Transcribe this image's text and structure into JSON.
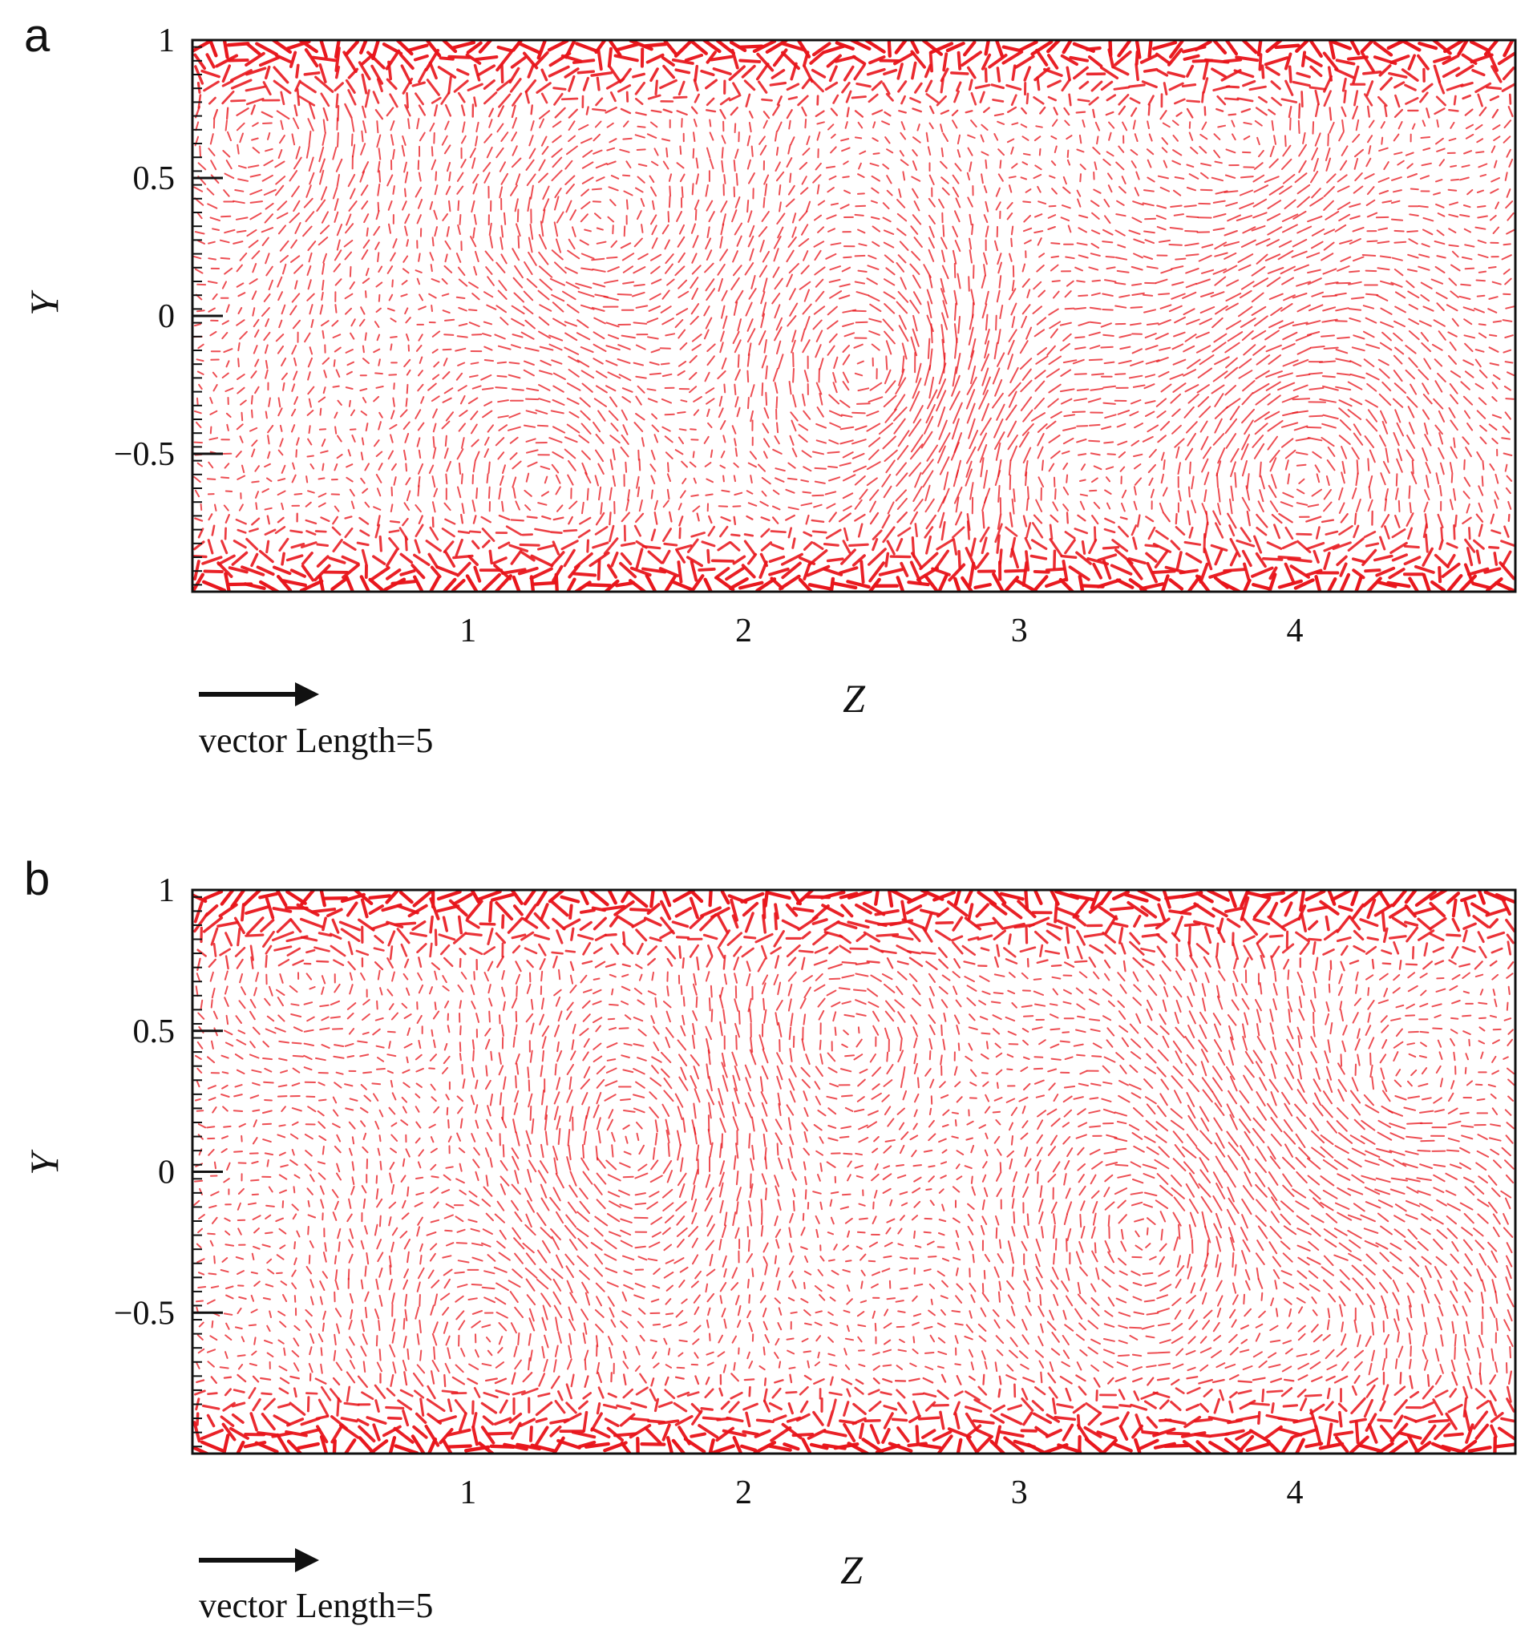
{
  "chart_data": [
    {
      "type": "vector_field",
      "panel": "a",
      "xlabel": "Z",
      "ylabel": "Y",
      "xlim": [
        0.0,
        4.8
      ],
      "ylim": [
        -1.0,
        1.0
      ],
      "xticks": [
        1,
        2,
        3,
        4
      ],
      "xtick_labels": [
        "1",
        "2",
        "3",
        "4"
      ],
      "yticks": [
        1,
        0.5,
        0,
        -0.5
      ],
      "ytick_labels": [
        "1",
        "0.5",
        "0",
        "−0.5"
      ],
      "reference_vector": {
        "label": "vector Length=5",
        "length": 5
      },
      "vortices": [
        {
          "z": 0.3,
          "y": 0.65,
          "strength": 1.0
        },
        {
          "z": 1.4,
          "y": 0.3,
          "strength": -1.2
        },
        {
          "z": 2.5,
          "y": -0.2,
          "strength": 1.4
        },
        {
          "z": 4.0,
          "y": -0.55,
          "strength": -1.3
        },
        {
          "z": 3.9,
          "y": 0.6,
          "strength": 0.9
        },
        {
          "z": 1.3,
          "y": -0.6,
          "strength": 0.8
        },
        {
          "z": 3.1,
          "y": -0.5,
          "strength": -0.8
        }
      ],
      "color": "#e8141a"
    },
    {
      "type": "vector_field",
      "panel": "b",
      "xlabel": "Z",
      "ylabel": "Y",
      "xlim": [
        0.0,
        4.8
      ],
      "ylim": [
        -1.0,
        1.0
      ],
      "xticks": [
        1,
        2,
        3,
        4
      ],
      "xtick_labels": [
        "1",
        "2",
        "3",
        "4"
      ],
      "yticks": [
        1,
        0.5,
        0,
        -0.5
      ],
      "ytick_labels": [
        "1",
        "0.5",
        "0",
        "−0.5"
      ],
      "reference_vector": {
        "label": "vector Length=5",
        "length": 5
      },
      "vortices": [
        {
          "z": 0.4,
          "y": 0.7,
          "strength": 0.9
        },
        {
          "z": 1.6,
          "y": 0.1,
          "strength": -1.1
        },
        {
          "z": 2.4,
          "y": 0.5,
          "strength": 0.9
        },
        {
          "z": 3.5,
          "y": -0.2,
          "strength": 1.0
        },
        {
          "z": 4.4,
          "y": 0.3,
          "strength": -1.1
        },
        {
          "z": 1.1,
          "y": -0.6,
          "strength": 0.9
        },
        {
          "z": 4.1,
          "y": -0.5,
          "strength": 0.8
        }
      ],
      "color": "#e8141a"
    }
  ]
}
